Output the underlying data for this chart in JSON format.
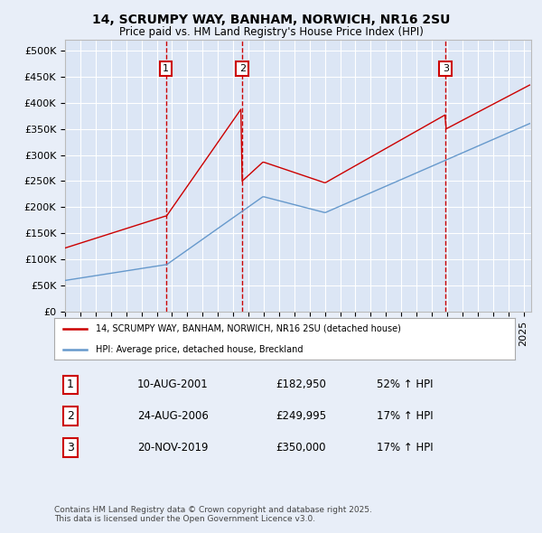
{
  "title": "14, SCRUMPY WAY, BANHAM, NORWICH, NR16 2SU",
  "subtitle": "Price paid vs. HM Land Registry's House Price Index (HPI)",
  "background_color": "#e8eef8",
  "plot_bg_color": "#dce6f5",
  "ylim": [
    0,
    520000
  ],
  "yticks": [
    0,
    50000,
    100000,
    150000,
    200000,
    250000,
    300000,
    350000,
    400000,
    450000,
    500000
  ],
  "xlim_start": 1995.0,
  "xlim_end": 2025.5,
  "purchases": [
    {
      "label": "1",
      "date": "10-AUG-2001",
      "year": 2001.6,
      "price": 182950,
      "hpi_pct": "52% ↑ HPI"
    },
    {
      "label": "2",
      "date": "24-AUG-2006",
      "year": 2006.6,
      "price": 249995,
      "hpi_pct": "17% ↑ HPI"
    },
    {
      "label": "3",
      "date": "20-NOV-2019",
      "year": 2019.9,
      "price": 350000,
      "hpi_pct": "17% ↑ HPI"
    }
  ],
  "legend_property_label": "14, SCRUMPY WAY, BANHAM, NORWICH, NR16 2SU (detached house)",
  "legend_hpi_label": "HPI: Average price, detached house, Breckland",
  "footer": "Contains HM Land Registry data © Crown copyright and database right 2025.\nThis data is licensed under the Open Government Licence v3.0.",
  "red_color": "#cc0000",
  "blue_color": "#6699cc",
  "table_rows": [
    [
      "1",
      "10-AUG-2001",
      "£182,950",
      "52% ↑ HPI"
    ],
    [
      "2",
      "24-AUG-2006",
      "£249,995",
      "17% ↑ HPI"
    ],
    [
      "3",
      "20-NOV-2019",
      "£350,000",
      "17% ↑ HPI"
    ]
  ]
}
